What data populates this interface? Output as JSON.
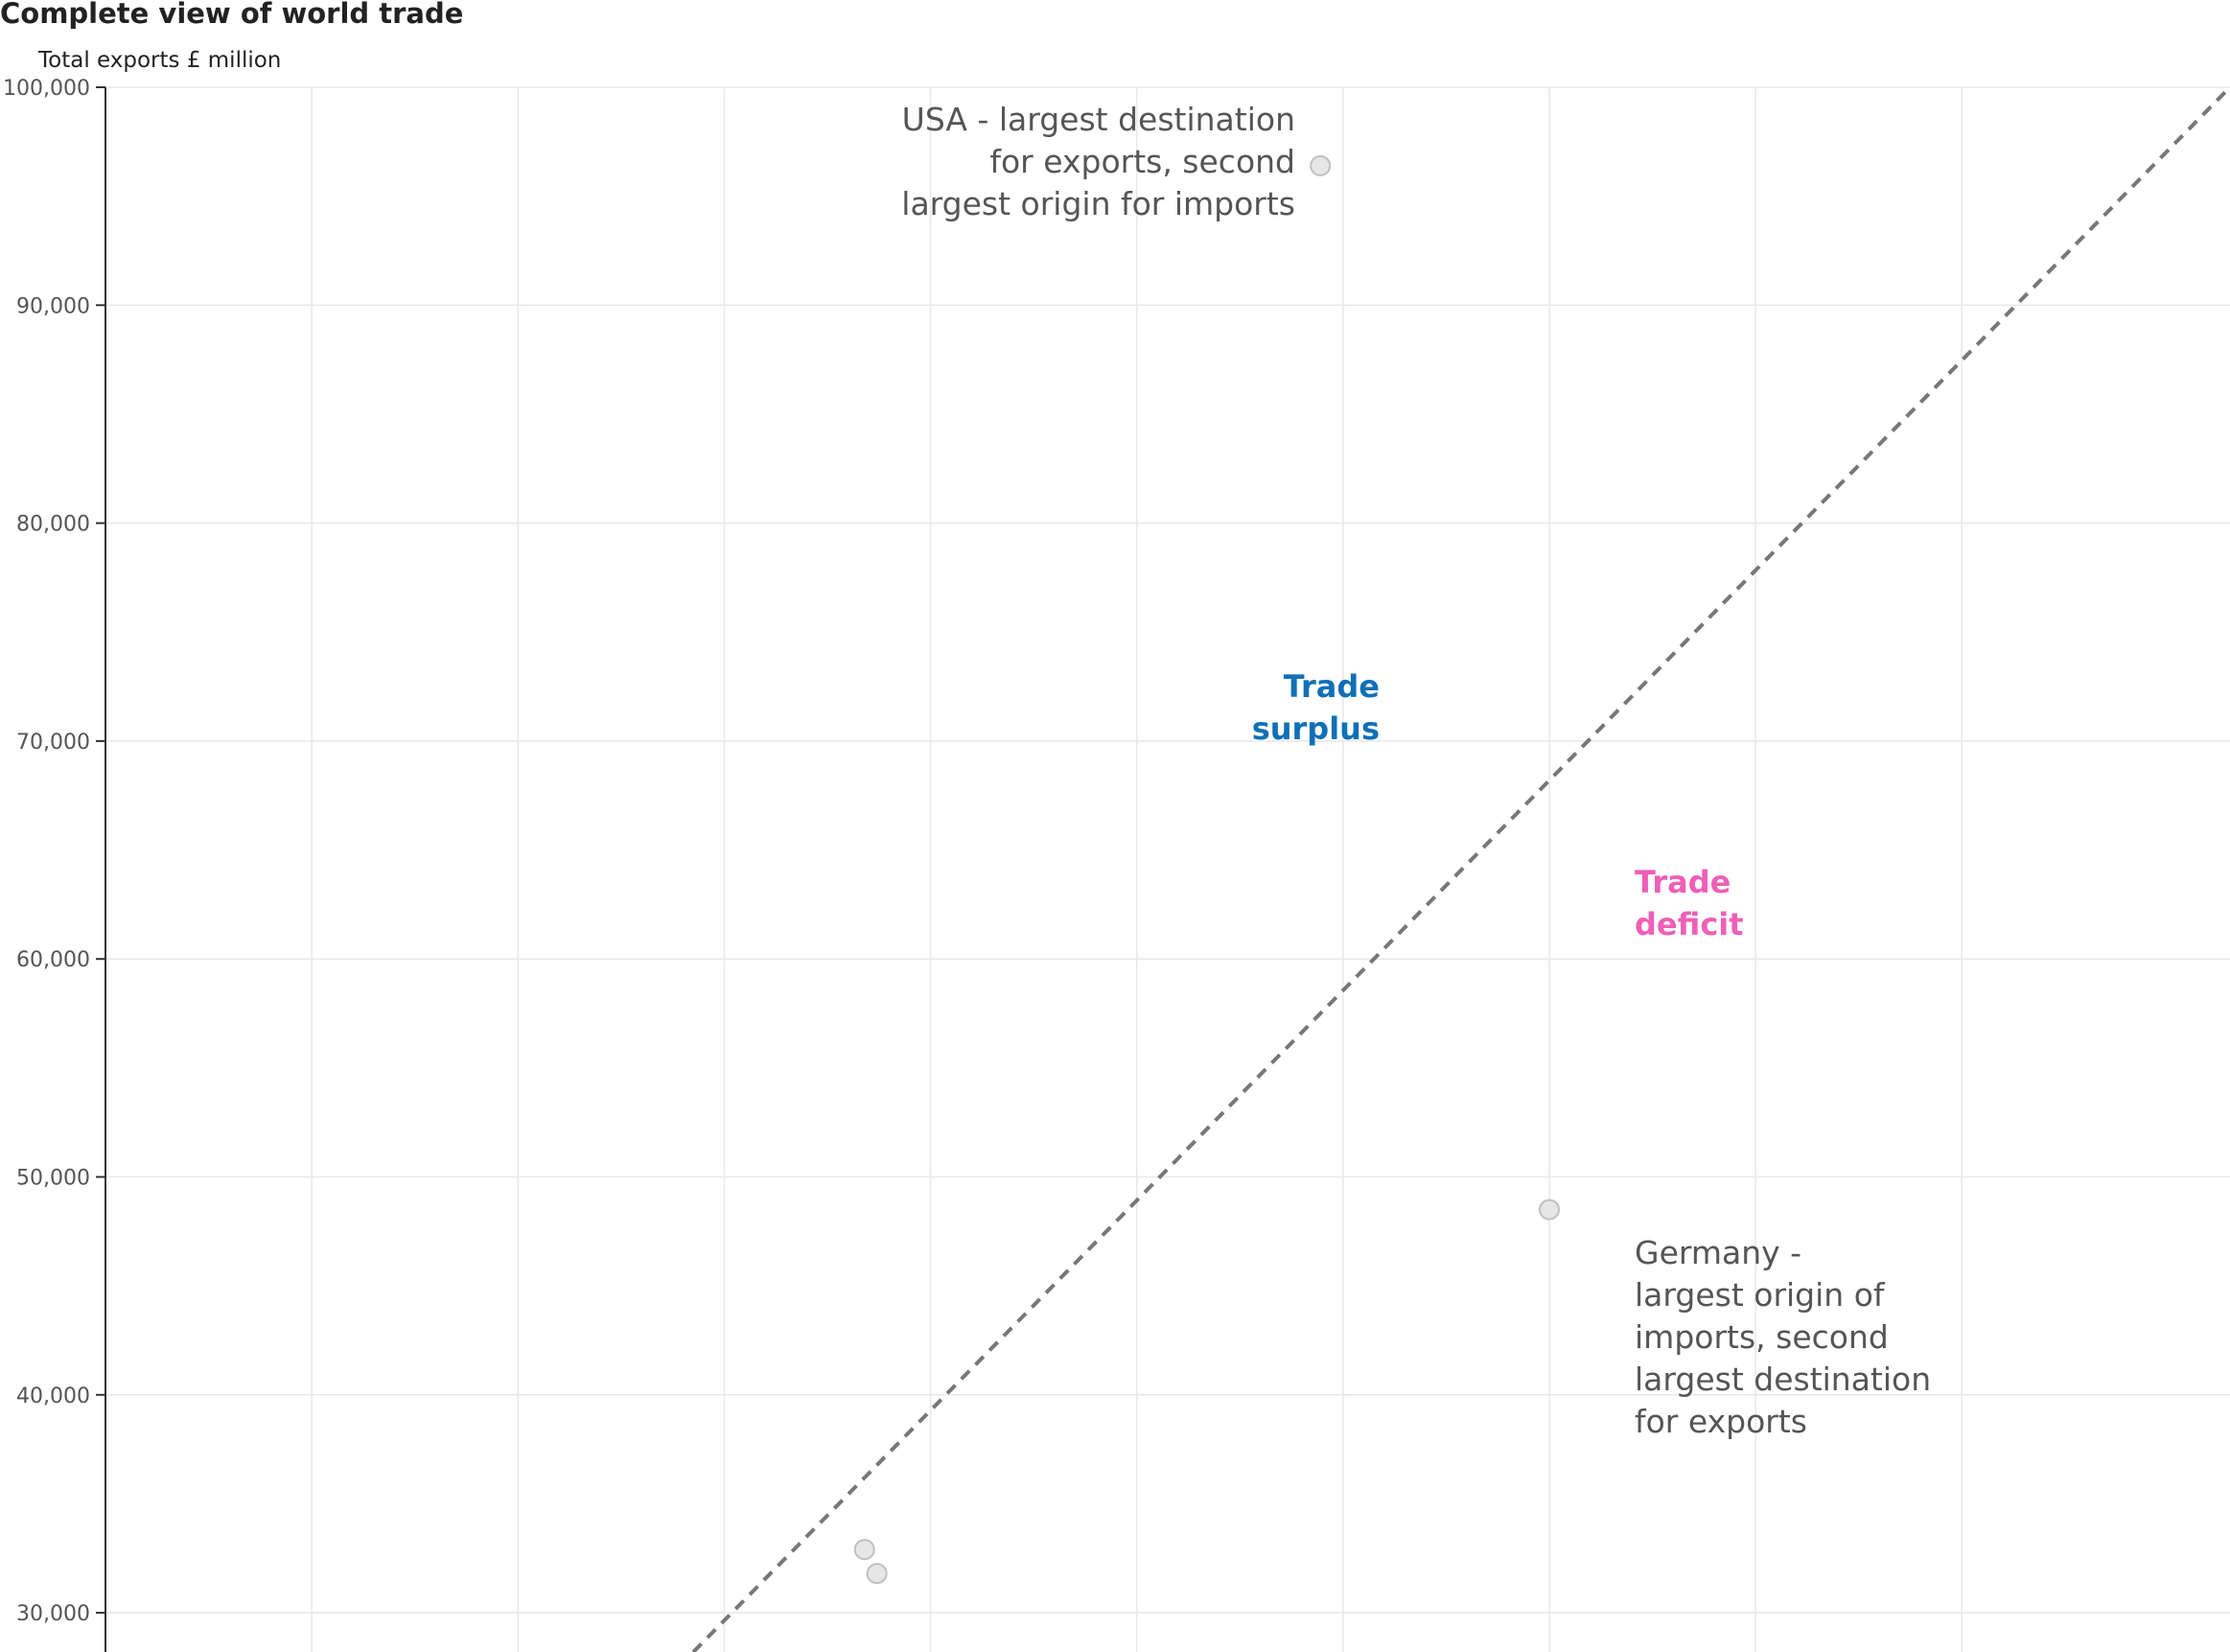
{
  "chart_data": {
    "type": "scatter",
    "title": "Complete view of world trade",
    "ylabel": "Total exports £ million",
    "xlabel": "",
    "ylim": [
      28200,
      100000
    ],
    "xlim": [
      51500,
      154500
    ],
    "yticks": [
      100000,
      90000,
      80000,
      70000,
      60000,
      50000,
      40000,
      30000
    ],
    "ytick_labels": [
      "100,000",
      "90,000",
      "80,000",
      "70,000",
      "60,000",
      "50,000",
      "40,000",
      "30,000"
    ],
    "x_gridlines": [
      61500,
      71500,
      81500,
      91500,
      101500,
      111500,
      121500,
      131500,
      141500
    ],
    "points": [
      {
        "x": 110400,
        "y": 96400
      },
      {
        "x": 121500,
        "y": 48500
      },
      {
        "x": 88300,
        "y": 32900
      },
      {
        "x": 88900,
        "y": 31800
      }
    ],
    "reference_line": {
      "style": "dashed",
      "from": [
        80000,
        28200
      ],
      "to": [
        154500,
        100000
      ]
    },
    "grid": true,
    "annotations": {
      "usa": [
        "USA - largest destination",
        "for exports, second",
        "largest origin for imports"
      ],
      "germany": [
        "Germany -",
        "largest origin of",
        "imports, second",
        "largest destination",
        "for exports"
      ],
      "surplus": [
        "Trade",
        "surplus"
      ],
      "deficit": [
        "Trade",
        "deficit"
      ]
    },
    "colors": {
      "surplus": "#0f70b7",
      "deficit": "#ee5fb7",
      "point_fill": "#e6e6e6",
      "point_stroke": "#c0c0c0",
      "grid": "#e8e8e8",
      "reference_line": "#777777"
    }
  }
}
